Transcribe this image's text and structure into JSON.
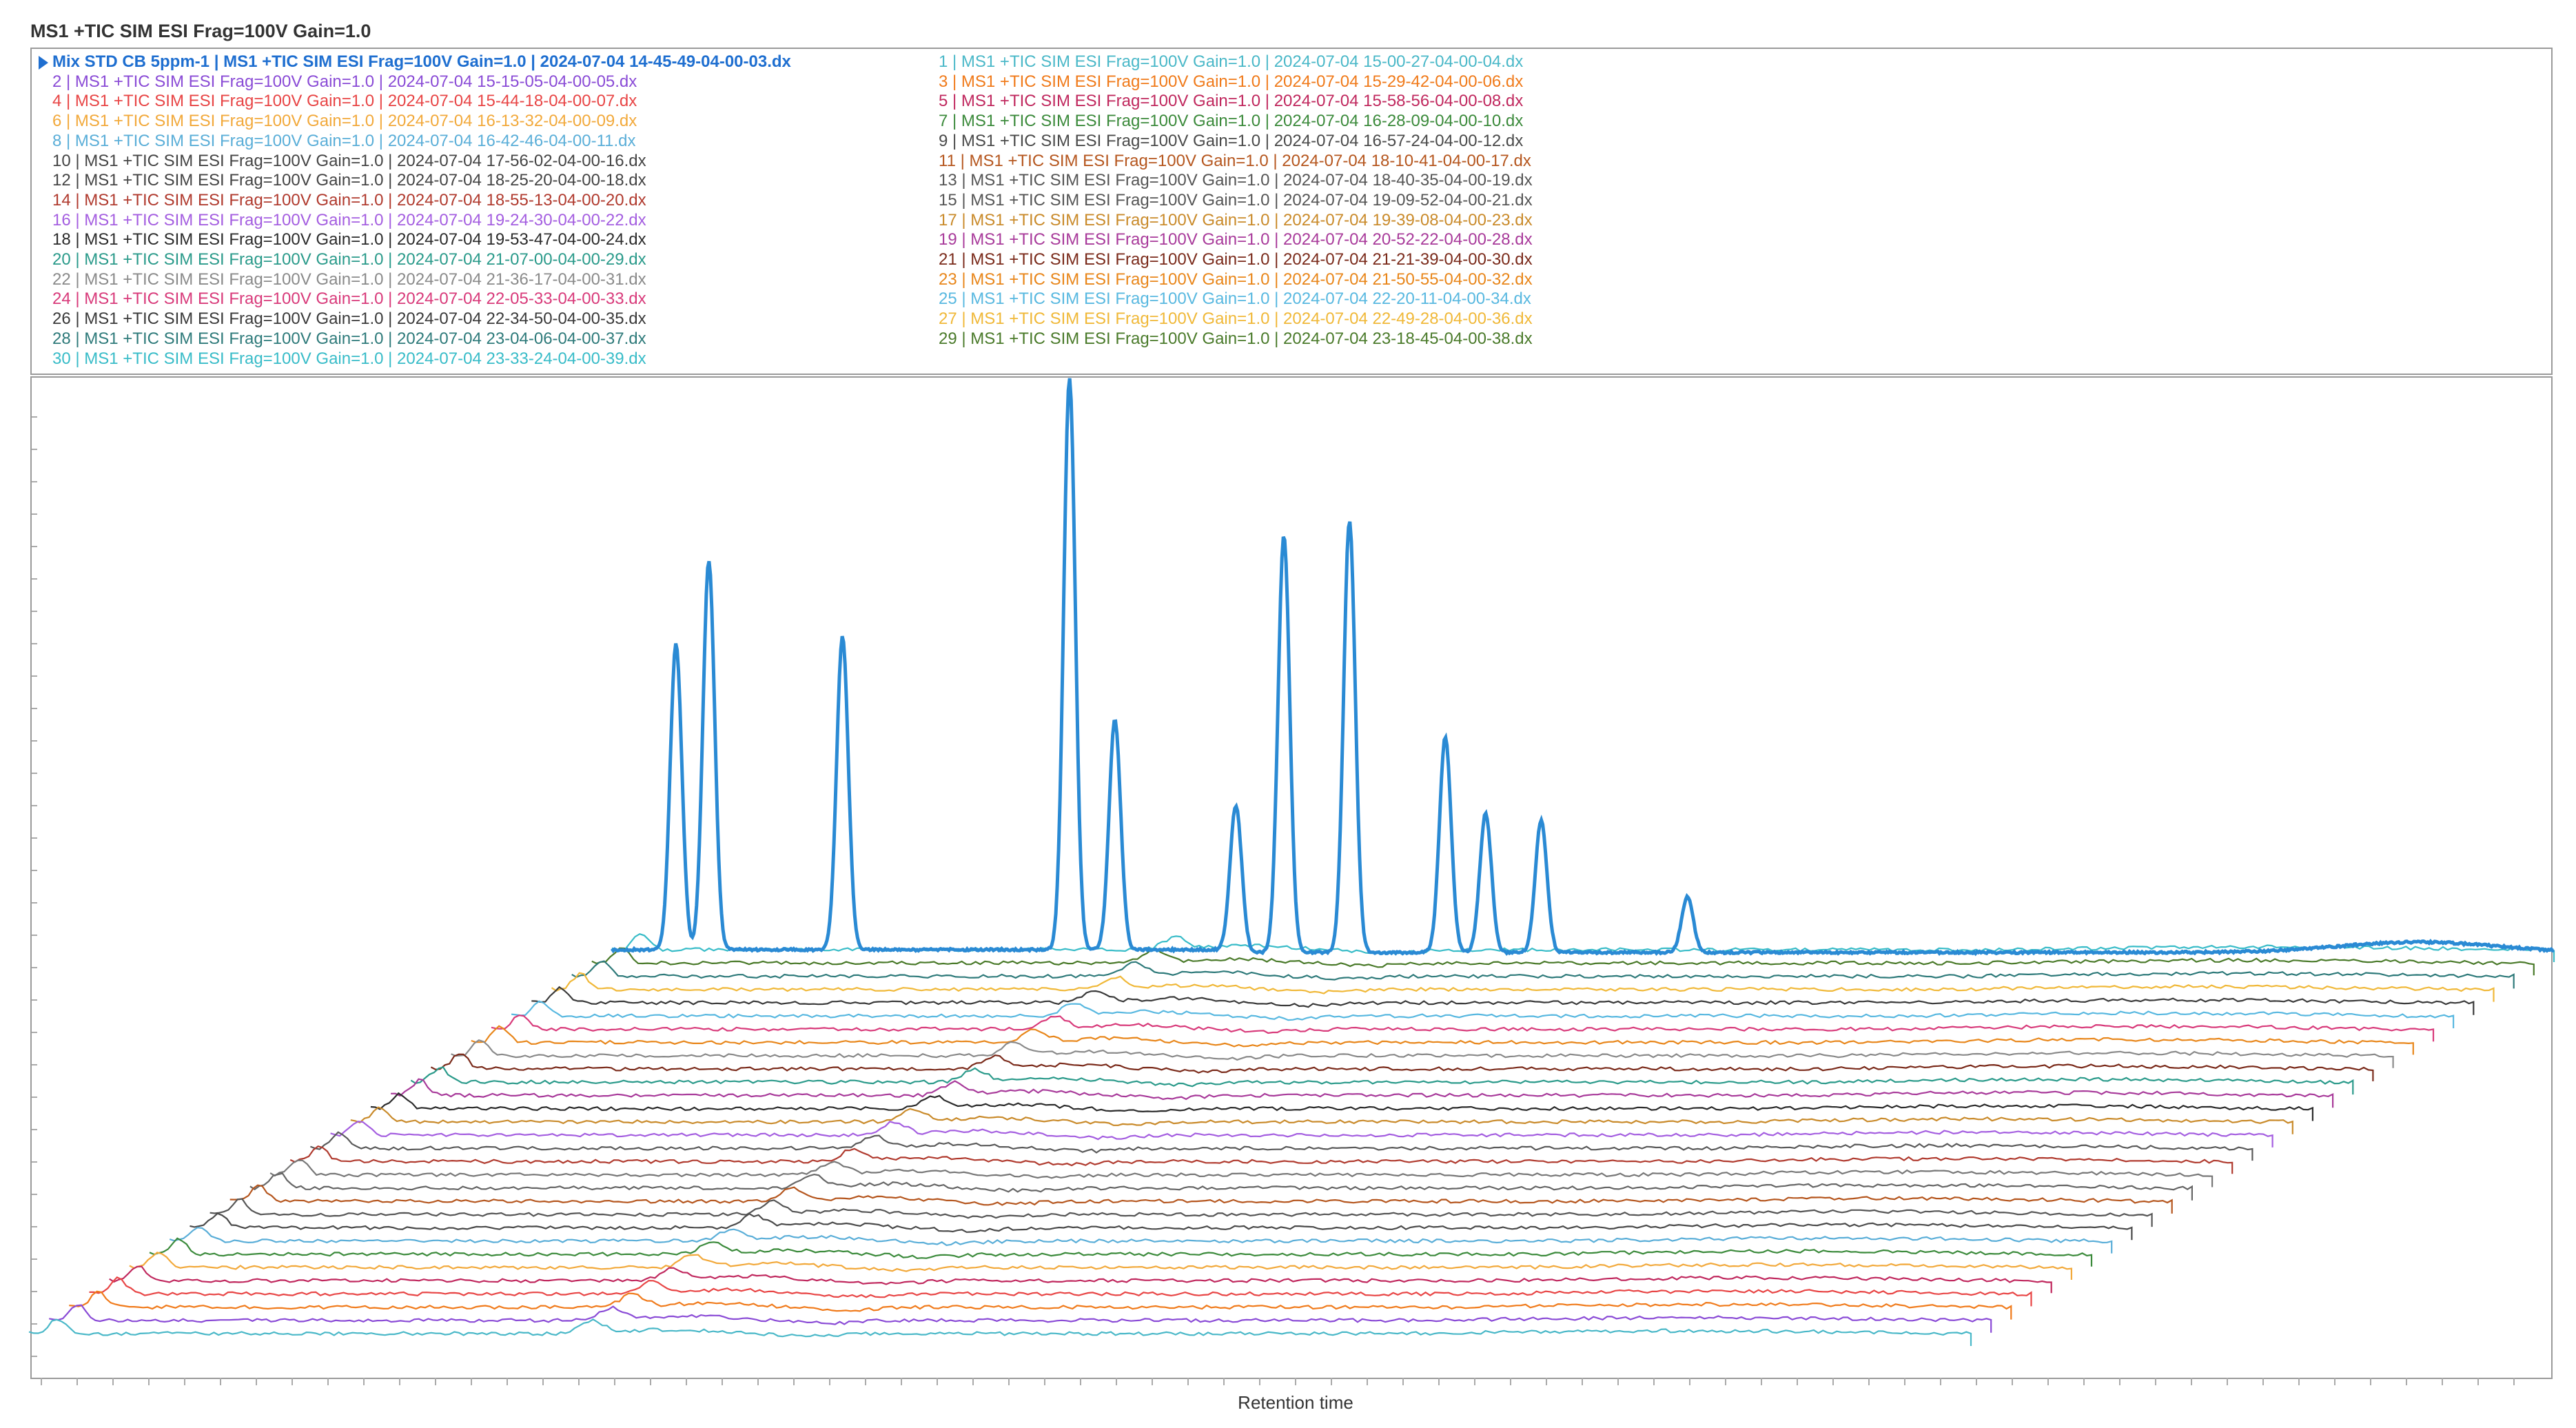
{
  "chart_data": {
    "type": "line",
    "title": "MS1 +TIC SIM ESI Frag=100V Gain=1.0",
    "xlabel": "Retention time",
    "ylabel": "",
    "grid": false,
    "layout_style": "stacked 3D waterfall overlay of chromatograms",
    "legend_placement": "top, two columns",
    "highlighted_series": "Mix STD CB 5ppm-1 | MS1 +TIC SIM ESI Frag=100V Gain=1.0 | 2024-07-04 14-45-49-04-00-03.dx",
    "main_peaks": [
      {
        "x": 0.256,
        "height": 0.44
      },
      {
        "x": 0.269,
        "height": 0.56
      },
      {
        "x": 0.322,
        "height": 0.45
      },
      {
        "x": 0.412,
        "height": 0.82
      },
      {
        "x": 0.43,
        "height": 0.33
      },
      {
        "x": 0.478,
        "height": 0.21
      },
      {
        "x": 0.497,
        "height": 0.6
      },
      {
        "x": 0.523,
        "height": 0.62
      },
      {
        "x": 0.561,
        "height": 0.31
      },
      {
        "x": 0.577,
        "height": 0.2
      },
      {
        "x": 0.599,
        "height": 0.19
      },
      {
        "x": 0.657,
        "height": 0.08
      }
    ],
    "series": [
      {
        "name": "Mix STD CB 5ppm-1 | MS1 +TIC SIM ESI Frag=100V Gain=1.0 | 2024-07-04 14-45-49-04-00-03.dx",
        "color": "#2a8ad4"
      },
      {
        "name": "1 | MS1 +TIC SIM ESI Frag=100V Gain=1.0 | 2024-07-04 15-00-27-04-00-04.dx",
        "color": "#4ab8c8"
      },
      {
        "name": "2 | MS1 +TIC SIM ESI Frag=100V Gain=1.0 | 2024-07-04 15-15-05-04-00-05.dx",
        "color": "#8a4bd6"
      },
      {
        "name": "3 | MS1 +TIC SIM ESI Frag=100V Gain=1.0 | 2024-07-04 15-29-42-04-00-06.dx",
        "color": "#f07a1a"
      },
      {
        "name": "4 | MS1 +TIC SIM ESI Frag=100V Gain=1.0 | 2024-07-04 15-44-18-04-00-07.dx",
        "color": "#e84545"
      },
      {
        "name": "5 | MS1 +TIC SIM ESI Frag=100V Gain=1.0 | 2024-07-04 15-58-56-04-00-08.dx",
        "color": "#c0285e"
      },
      {
        "name": "6 | MS1 +TIC SIM ESI Frag=100V Gain=1.0 | 2024-07-04 16-13-32-04-00-09.dx",
        "color": "#f2a93b"
      },
      {
        "name": "7 | MS1 +TIC SIM ESI Frag=100V Gain=1.0 | 2024-07-04 16-28-09-04-00-10.dx",
        "color": "#3b8a3b"
      },
      {
        "name": "8 | MS1 +TIC SIM ESI Frag=100V Gain=1.0 | 2024-07-04 16-42-46-04-00-11.dx",
        "color": "#5aaed8"
      },
      {
        "name": "9 | MS1 +TIC SIM ESI Frag=100V Gain=1.0 | 2024-07-04 16-57-24-04-00-12.dx",
        "color": "#4a4a4a"
      },
      {
        "name": "10 | MS1 +TIC SIM ESI Frag=100V Gain=1.0 | 2024-07-04 17-56-02-04-00-16.dx",
        "color": "#555555"
      },
      {
        "name": "11 | MS1 +TIC SIM ESI Frag=100V Gain=1.0 | 2024-07-04 18-10-41-04-00-17.dx",
        "color": "#b5561e"
      },
      {
        "name": "12 | MS1 +TIC SIM ESI Frag=100V Gain=1.0 | 2024-07-04 18-25-20-04-00-18.dx",
        "color": "#666666"
      },
      {
        "name": "13 | MS1 +TIC SIM ESI Frag=100V Gain=1.0 | 2024-07-04 18-40-35-04-00-19.dx",
        "color": "#777777"
      },
      {
        "name": "14 | MS1 +TIC SIM ESI Frag=100V Gain=1.0 | 2024-07-04 18-55-13-04-00-20.dx",
        "color": "#b03a2e"
      },
      {
        "name": "15 | MS1 +TIC SIM ESI Frag=100V Gain=1.0 | 2024-07-04 19-09-52-04-00-21.dx",
        "color": "#5a5a5a"
      },
      {
        "name": "16 | MS1 +TIC SIM ESI Frag=100V Gain=1.0 | 2024-07-04 19-24-30-04-00-22.dx",
        "color": "#a45ee0"
      },
      {
        "name": "17 | MS1 +TIC SIM ESI Frag=100V Gain=1.0 | 2024-07-04 19-39-08-04-00-23.dx",
        "color": "#c98a2a"
      },
      {
        "name": "18 | MS1 +TIC SIM ESI Frag=100V Gain=1.0 | 2024-07-04 19-53-47-04-00-24.dx",
        "color": "#2b2b2b"
      },
      {
        "name": "19 | MS1 +TIC SIM ESI Frag=100V Gain=1.0 | 2024-07-04 20-52-22-04-00-28.dx",
        "color": "#a83a9a"
      },
      {
        "name": "20 | MS1 +TIC SIM ESI Frag=100V Gain=1.0 | 2024-07-04 21-07-00-04-00-29.dx",
        "color": "#2a9a8a"
      },
      {
        "name": "21 | MS1 +TIC SIM ESI Frag=100V Gain=1.0 | 2024-07-04 21-21-39-04-00-30.dx",
        "color": "#7a2a1a"
      },
      {
        "name": "22 | MS1 +TIC SIM ESI Frag=100V Gain=1.0 | 2024-07-04 21-36-17-04-00-31.dx",
        "color": "#8a8a8a"
      },
      {
        "name": "23 | MS1 +TIC SIM ESI Frag=100V Gain=1.0 | 2024-07-04 21-50-55-04-00-32.dx",
        "color": "#e8861a"
      },
      {
        "name": "24 | MS1 +TIC SIM ESI Frag=100V Gain=1.0 | 2024-07-04 22-05-33-04-00-33.dx",
        "color": "#d83a7a"
      },
      {
        "name": "25 | MS1 +TIC SIM ESI Frag=100V Gain=1.0 | 2024-07-04 22-20-11-04-00-34.dx",
        "color": "#58b8e0"
      },
      {
        "name": "26 | MS1 +TIC SIM ESI Frag=100V Gain=1.0 | 2024-07-04 22-34-50-04-00-35.dx",
        "color": "#3a3a3a"
      },
      {
        "name": "27 | MS1 +TIC SIM ESI Frag=100V Gain=1.0 | 2024-07-04 22-49-28-04-00-36.dx",
        "color": "#f0b838"
      },
      {
        "name": "28 | MS1 +TIC SIM ESI Frag=100V Gain=1.0 | 2024-07-04 23-04-06-04-00-37.dx",
        "color": "#2e7a7a"
      },
      {
        "name": "29 | MS1 +TIC SIM ESI Frag=100V Gain=1.0 | 2024-07-04 23-18-45-04-00-38.dx",
        "color": "#4a7a2a"
      },
      {
        "name": "30 | MS1 +TIC SIM ESI Frag=100V Gain=1.0 | 2024-07-04 23-33-24-04-00-39.dx",
        "color": "#38bcc8"
      }
    ]
  },
  "legend": {
    "left_column": [
      {
        "text": "Mix STD CB 5ppm-1 | MS1 +TIC SIM ESI Frag=100V Gain=1.0 | 2024-07-04 14-45-49-04-00-03.dx",
        "color": "#1f6fd0",
        "active": true
      },
      {
        "text": "2 | MS1 +TIC SIM ESI Frag=100V Gain=1.0 | 2024-07-04 15-15-05-04-00-05.dx",
        "color": "#8a4bd6"
      },
      {
        "text": "4 | MS1 +TIC SIM ESI Frag=100V Gain=1.0 | 2024-07-04 15-44-18-04-00-07.dx",
        "color": "#e84545"
      },
      {
        "text": "6 | MS1 +TIC SIM ESI Frag=100V Gain=1.0 | 2024-07-04 16-13-32-04-00-09.dx",
        "color": "#f2a93b"
      },
      {
        "text": "8 | MS1 +TIC SIM ESI Frag=100V Gain=1.0 | 2024-07-04 16-42-46-04-00-11.dx",
        "color": "#5aaed8"
      },
      {
        "text": "10 | MS1 +TIC SIM ESI Frag=100V Gain=1.0 | 2024-07-04 17-56-02-04-00-16.dx",
        "color": "#444444"
      },
      {
        "text": "12 | MS1 +TIC SIM ESI Frag=100V Gain=1.0 | 2024-07-04 18-25-20-04-00-18.dx",
        "color": "#444444"
      },
      {
        "text": "14 | MS1 +TIC SIM ESI Frag=100V Gain=1.0 | 2024-07-04 18-55-13-04-00-20.dx",
        "color": "#b03a2e"
      },
      {
        "text": "16 | MS1 +TIC SIM ESI Frag=100V Gain=1.0 | 2024-07-04 19-24-30-04-00-22.dx",
        "color": "#a45ee0"
      },
      {
        "text": "18 | MS1 +TIC SIM ESI Frag=100V Gain=1.0 | 2024-07-04 19-53-47-04-00-24.dx",
        "color": "#2b2b2b"
      },
      {
        "text": "20 | MS1 +TIC SIM ESI Frag=100V Gain=1.0 | 2024-07-04 21-07-00-04-00-29.dx",
        "color": "#2a9a8a"
      },
      {
        "text": "22 | MS1 +TIC SIM ESI Frag=100V Gain=1.0 | 2024-07-04 21-36-17-04-00-31.dx",
        "color": "#8a8a8a"
      },
      {
        "text": "24 | MS1 +TIC SIM ESI Frag=100V Gain=1.0 | 2024-07-04 22-05-33-04-00-33.dx",
        "color": "#d83a7a"
      },
      {
        "text": "26 | MS1 +TIC SIM ESI Frag=100V Gain=1.0 | 2024-07-04 22-34-50-04-00-35.dx",
        "color": "#3a3a3a"
      },
      {
        "text": "28 | MS1 +TIC SIM ESI Frag=100V Gain=1.0 | 2024-07-04 23-04-06-04-00-37.dx",
        "color": "#2e7a7a"
      },
      {
        "text": "30 | MS1 +TIC SIM ESI Frag=100V Gain=1.0 | 2024-07-04 23-33-24-04-00-39.dx",
        "color": "#38bcc8"
      }
    ],
    "right_column": [
      {
        "text": "1 | MS1 +TIC SIM ESI Frag=100V Gain=1.0 | 2024-07-04 15-00-27-04-00-04.dx",
        "color": "#4ab8c8"
      },
      {
        "text": "3 | MS1 +TIC SIM ESI Frag=100V Gain=1.0 | 2024-07-04 15-29-42-04-00-06.dx",
        "color": "#f07a1a"
      },
      {
        "text": "5 | MS1 +TIC SIM ESI Frag=100V Gain=1.0 | 2024-07-04 15-58-56-04-00-08.dx",
        "color": "#c0285e"
      },
      {
        "text": "7 | MS1 +TIC SIM ESI Frag=100V Gain=1.0 | 2024-07-04 16-28-09-04-00-10.dx",
        "color": "#3b8a3b"
      },
      {
        "text": "9 | MS1 +TIC SIM ESI Frag=100V Gain=1.0 | 2024-07-04 16-57-24-04-00-12.dx",
        "color": "#4a4a4a"
      },
      {
        "text": "11 | MS1 +TIC SIM ESI Frag=100V Gain=1.0 | 2024-07-04 18-10-41-04-00-17.dx",
        "color": "#b5561e"
      },
      {
        "text": "13 | MS1 +TIC SIM ESI Frag=100V Gain=1.0 | 2024-07-04 18-40-35-04-00-19.dx",
        "color": "#555555"
      },
      {
        "text": "15 | MS1 +TIC SIM ESI Frag=100V Gain=1.0 | 2024-07-04 19-09-52-04-00-21.dx",
        "color": "#555555"
      },
      {
        "text": "17 | MS1 +TIC SIM ESI Frag=100V Gain=1.0 | 2024-07-04 19-39-08-04-00-23.dx",
        "color": "#c98a2a"
      },
      {
        "text": "19 | MS1 +TIC SIM ESI Frag=100V Gain=1.0 | 2024-07-04 20-52-22-04-00-28.dx",
        "color": "#a83a9a"
      },
      {
        "text": "21 | MS1 +TIC SIM ESI Frag=100V Gain=1.0 | 2024-07-04 21-21-39-04-00-30.dx",
        "color": "#7a2a1a"
      },
      {
        "text": "23 | MS1 +TIC SIM ESI Frag=100V Gain=1.0 | 2024-07-04 21-50-55-04-00-32.dx",
        "color": "#e8861a"
      },
      {
        "text": "25 | MS1 +TIC SIM ESI Frag=100V Gain=1.0 | 2024-07-04 22-20-11-04-00-34.dx",
        "color": "#58b8e0"
      },
      {
        "text": "27 | MS1 +TIC SIM ESI Frag=100V Gain=1.0 | 2024-07-04 22-49-28-04-00-36.dx",
        "color": "#f0b838"
      },
      {
        "text": "29 | MS1 +TIC SIM ESI Frag=100V Gain=1.0 | 2024-07-04 23-18-45-04-00-38.dx",
        "color": "#4a7a2a"
      }
    ]
  }
}
